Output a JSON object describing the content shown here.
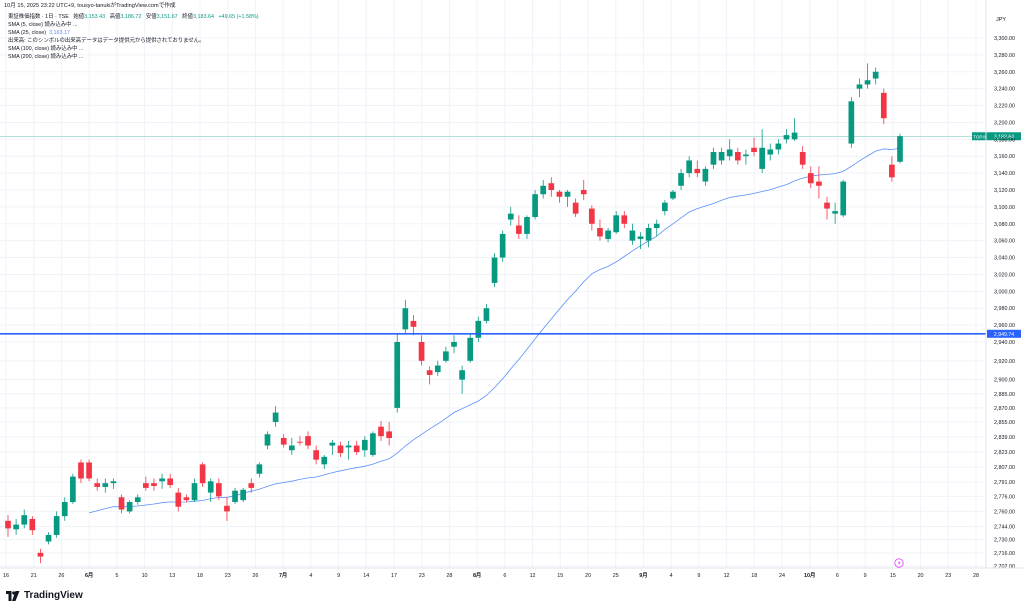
{
  "header": {
    "timestamp_line": "10月 15, 2025 23:22 UTC+9,  tousyo-tanukiがTradingView.comで作成"
  },
  "legend": {
    "symbol_line": "東証株価指数 · 1日 · TSE",
    "ohlc": [
      {
        "label": "始値",
        "value": "3,153.43"
      },
      {
        "label": "高値",
        "value": "3,186.72"
      },
      {
        "label": "安値",
        "value": "3,151.67"
      },
      {
        "label": "終値",
        "value": "3,183.64"
      }
    ],
    "change": "+49.65 (+1.58%)",
    "indicators": [
      {
        "text": "SMA (5, close) 読み込み中 ...",
        "value": ""
      },
      {
        "text": "SMA (25, close)",
        "value": "3,163.17"
      },
      {
        "text": "出来高: このシンボルの出来高データはデータ提供元から提供されておりません。",
        "value": ""
      },
      {
        "text": "SMA (100, close) 読み込み中 ...",
        "value": ""
      },
      {
        "text": "SMA (200, close) 読み込み中 ...",
        "value": ""
      }
    ]
  },
  "brand": "TradingView",
  "icons": {
    "brand_logo": "tradingview-logo-icon",
    "event_marker": "lightning-icon"
  },
  "colors": {
    "up": "#089981",
    "down": "#f23645",
    "sma25": "#5b8ff9",
    "hline": "#2962ff",
    "last_line": "#089981",
    "grid": "#f0f3fa"
  },
  "chart_data": {
    "type": "candlestick",
    "currency": "JPY",
    "ylim": [
      2702,
      3320
    ],
    "y_ticks": [
      "2,702.00",
      "2,716.00",
      "2,730.00",
      "2,744.00",
      "2,760.00",
      "2,776.00",
      "2,791.00",
      "2,807.00",
      "2,823.00",
      "2,839.00",
      "2,855.00",
      "2,870.00",
      "2,885.00",
      "2,900.00",
      "2,920.00",
      "2,940.00",
      "2,960.00",
      "2,980.00",
      "3,000.00",
      "3,020.00",
      "3,040.00",
      "3,060.00",
      "3,080.00",
      "3,100.00",
      "3,120.00",
      "3,140.00",
      "3,160.00",
      "3,180.00",
      "3,200.00",
      "3,220.00",
      "3,240.00",
      "3,260.00",
      "3,280.00",
      "3,300.00"
    ],
    "x_ticks": [
      "16",
      "21",
      "26",
      "6月",
      "5",
      "10",
      "13",
      "18",
      "23",
      "26",
      "7月",
      "4",
      "9",
      "14",
      "17",
      "23",
      "28",
      "8月",
      "6",
      "12",
      "15",
      "20",
      "25",
      "9月",
      "4",
      "9",
      "12",
      "18",
      "24",
      "10月",
      "6",
      "9",
      "15",
      "20",
      "23",
      "28"
    ],
    "last_price": {
      "label": "TOPIX",
      "value": "3,183.64",
      "y": 3183.64
    },
    "hline": {
      "value": "2,949.74",
      "y": 2949.74
    },
    "candles": [
      [
        2750,
        2756,
        2733,
        2742
      ],
      [
        2741,
        2752,
        2735,
        2746
      ],
      [
        2746,
        2762,
        2742,
        2756
      ],
      [
        2752,
        2755,
        2735,
        2740
      ],
      [
        2716,
        2720,
        2705,
        2712
      ],
      [
        2728,
        2738,
        2725,
        2735
      ],
      [
        2735,
        2760,
        2732,
        2755
      ],
      [
        2755,
        2775,
        2750,
        2770
      ],
      [
        2770,
        2800,
        2768,
        2797
      ],
      [
        2812,
        2815,
        2790,
        2795
      ],
      [
        2812,
        2815,
        2792,
        2795
      ],
      [
        2790,
        2795,
        2782,
        2786
      ],
      [
        2786,
        2795,
        2780,
        2790
      ],
      [
        2790,
        2795,
        2784,
        2792
      ],
      [
        2775,
        2778,
        2758,
        2762
      ],
      [
        2760,
        2772,
        2758,
        2770
      ],
      [
        2770,
        2778,
        2767,
        2775
      ],
      [
        2790,
        2797,
        2782,
        2785
      ],
      [
        2790,
        2795,
        2782,
        2787
      ],
      [
        2792,
        2800,
        2784,
        2795
      ],
      [
        2795,
        2800,
        2785,
        2788
      ],
      [
        2780,
        2785,
        2760,
        2765
      ],
      [
        2775,
        2778,
        2770,
        2772
      ],
      [
        2772,
        2795,
        2770,
        2790
      ],
      [
        2810,
        2812,
        2786,
        2790
      ],
      [
        2780,
        2795,
        2770,
        2792
      ],
      [
        2790,
        2795,
        2772,
        2776
      ],
      [
        2766,
        2775,
        2750,
        2760
      ],
      [
        2770,
        2785,
        2768,
        2782
      ],
      [
        2772,
        2785,
        2770,
        2783
      ],
      [
        2790,
        2795,
        2780,
        2785
      ],
      [
        2800,
        2812,
        2796,
        2810
      ],
      [
        2830,
        2845,
        2826,
        2842
      ],
      [
        2855,
        2872,
        2850,
        2865
      ],
      [
        2838,
        2842,
        2828,
        2831
      ],
      [
        2825,
        2838,
        2820,
        2830
      ],
      [
        2834,
        2840,
        2830,
        2833
      ],
      [
        2840,
        2845,
        2826,
        2830
      ],
      [
        2825,
        2830,
        2810,
        2815
      ],
      [
        2810,
        2820,
        2805,
        2818
      ],
      [
        2830,
        2836,
        2820,
        2833
      ],
      [
        2830,
        2834,
        2818,
        2822
      ],
      [
        2828,
        2835,
        2815,
        2830
      ],
      [
        2830,
        2835,
        2820,
        2823
      ],
      [
        2825,
        2840,
        2818,
        2836
      ],
      [
        2820,
        2845,
        2818,
        2843
      ],
      [
        2850,
        2856,
        2835,
        2840
      ],
      [
        2845,
        2855,
        2830,
        2838
      ],
      [
        2870,
        2950,
        2865,
        2940
      ],
      [
        2955,
        2990,
        2950,
        2980
      ],
      [
        2965,
        2972,
        2948,
        2958
      ],
      [
        2940,
        2948,
        2915,
        2920
      ],
      [
        2910,
        2914,
        2895,
        2905
      ],
      [
        2908,
        2920,
        2904,
        2915
      ],
      [
        2920,
        2935,
        2918,
        2930
      ],
      [
        2935,
        2948,
        2928,
        2940
      ],
      [
        2900,
        2915,
        2885,
        2910
      ],
      [
        2920,
        2950,
        2918,
        2945
      ],
      [
        2945,
        2970,
        2940,
        2965
      ],
      [
        2965,
        2985,
        2962,
        2980
      ],
      [
        3010,
        3045,
        3005,
        3040
      ],
      [
        3040,
        3072,
        3035,
        3068
      ],
      [
        3085,
        3100,
        3078,
        3092
      ],
      [
        3078,
        3090,
        3062,
        3068
      ],
      [
        3068,
        3090,
        3062,
        3088
      ],
      [
        3088,
        3120,
        3085,
        3115
      ],
      [
        3115,
        3132,
        3110,
        3125
      ],
      [
        3128,
        3135,
        3112,
        3120
      ],
      [
        3118,
        3120,
        3105,
        3112
      ],
      [
        3112,
        3120,
        3100,
        3118
      ],
      [
        3105,
        3110,
        3088,
        3092
      ],
      [
        3120,
        3132,
        3108,
        3115
      ],
      [
        3098,
        3102,
        3072,
        3080
      ],
      [
        3075,
        3085,
        3060,
        3065
      ],
      [
        3062,
        3075,
        3058,
        3072
      ],
      [
        3070,
        3095,
        3068,
        3090
      ],
      [
        3090,
        3095,
        3075,
        3080
      ],
      [
        3060,
        3080,
        3055,
        3072
      ],
      [
        3062,
        3070,
        3050,
        3065
      ],
      [
        3060,
        3080,
        3052,
        3075
      ],
      [
        3075,
        3085,
        3065,
        3080
      ],
      [
        3095,
        3108,
        3090,
        3105
      ],
      [
        3110,
        3120,
        3108,
        3118
      ],
      [
        3125,
        3145,
        3120,
        3140
      ],
      [
        3140,
        3160,
        3135,
        3155
      ],
      [
        3145,
        3155,
        3135,
        3140
      ],
      [
        3130,
        3148,
        3125,
        3145
      ],
      [
        3150,
        3170,
        3145,
        3165
      ],
      [
        3155,
        3170,
        3150,
        3165
      ],
      [
        3160,
        3180,
        3155,
        3168
      ],
      [
        3165,
        3170,
        3150,
        3155
      ],
      [
        3160,
        3168,
        3150,
        3162
      ],
      [
        3170,
        3182,
        3160,
        3165
      ],
      [
        3145,
        3192,
        3140,
        3170
      ],
      [
        3162,
        3175,
        3155,
        3168
      ],
      [
        3168,
        3180,
        3162,
        3175
      ],
      [
        3180,
        3192,
        3175,
        3185
      ],
      [
        3180,
        3205,
        3178,
        3188
      ],
      [
        3165,
        3172,
        3145,
        3150
      ],
      [
        3140,
        3148,
        3122,
        3128
      ],
      [
        3130,
        3148,
        3110,
        3125
      ],
      [
        3105,
        3112,
        3085,
        3098
      ],
      [
        3092,
        3105,
        3080,
        3095
      ],
      [
        3090,
        3132,
        3088,
        3130
      ],
      [
        3175,
        3230,
        3170,
        3225
      ],
      [
        3240,
        3252,
        3230,
        3245
      ],
      [
        3245,
        3270,
        3240,
        3250
      ],
      [
        3252,
        3265,
        3245,
        3260
      ],
      [
        3235,
        3240,
        3198,
        3205
      ],
      [
        3150,
        3160,
        3130,
        3135
      ],
      [
        3153.43,
        3186.72,
        3151.67,
        3183.64
      ]
    ]
  }
}
